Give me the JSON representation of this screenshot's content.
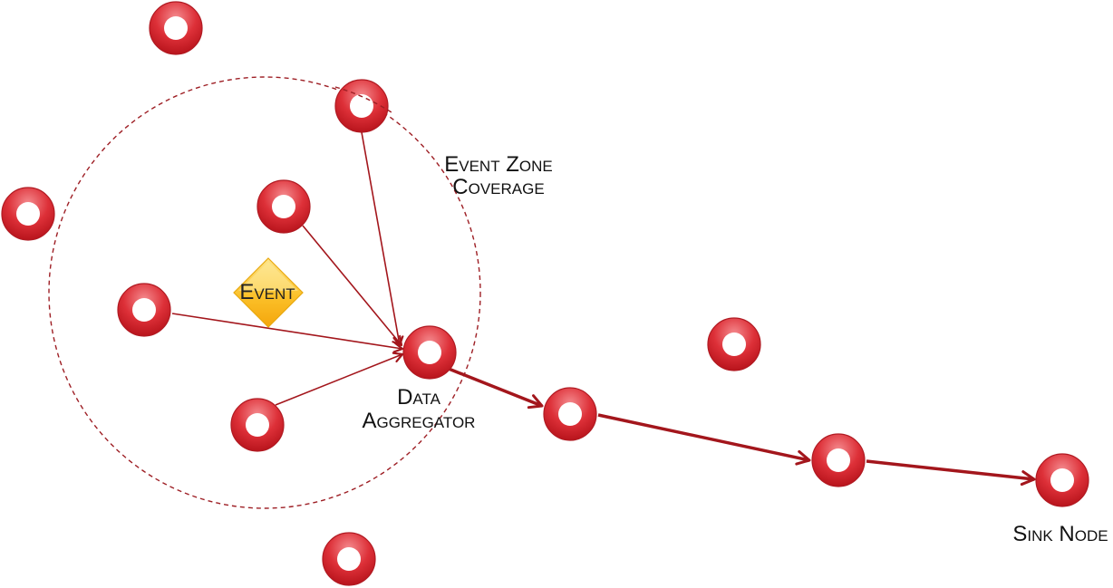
{
  "labels": {
    "event_zone_line1": "Event Zone",
    "event_zone_line2": "Coverage",
    "data_aggregator_line1": "Data",
    "data_aggregator_line2": "Aggregator",
    "sink_node": "Sink Node",
    "event": "Event"
  },
  "colors": {
    "node_fill": "#d9262e",
    "node_highlight": "#f07a7e",
    "node_stroke": "#b01a22",
    "link_color": "#a3161c",
    "zone_stroke": "#9e1f25",
    "event_fill": "#f9b81a",
    "event_highlight": "#fde17a"
  }
}
